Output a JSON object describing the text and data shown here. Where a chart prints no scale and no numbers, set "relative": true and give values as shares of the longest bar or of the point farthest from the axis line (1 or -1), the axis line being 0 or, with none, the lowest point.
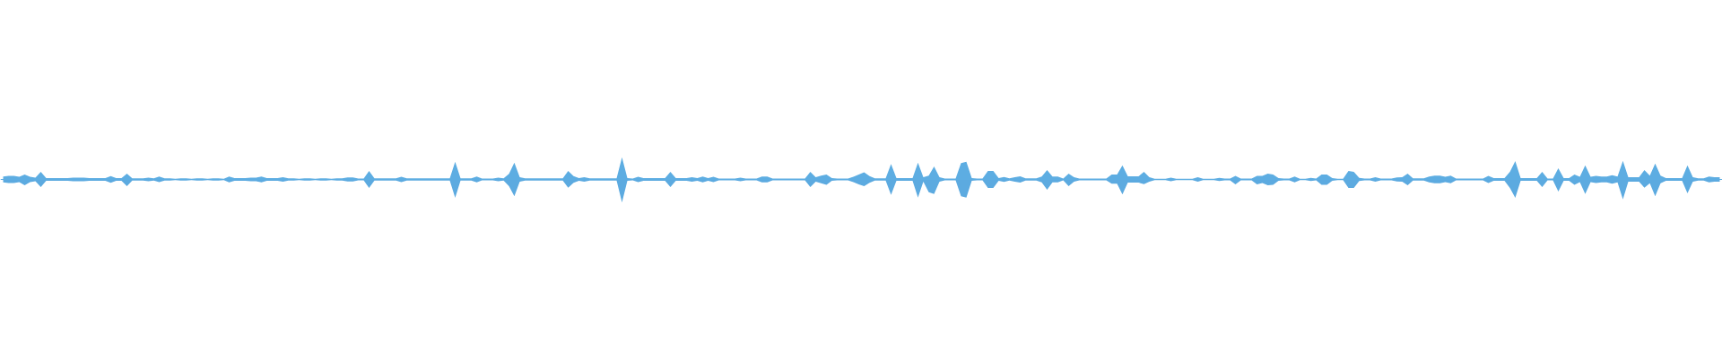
{
  "chart_data": {
    "type": "area",
    "relative": true,
    "categories": [
      null,
      null,
      null,
      null,
      null,
      null,
      null,
      null,
      null,
      null,
      null,
      null,
      null,
      null,
      null,
      null,
      null,
      null,
      null,
      null,
      null,
      null,
      null,
      null,
      null,
      null,
      null,
      null,
      null,
      null,
      null,
      null,
      null,
      null,
      null,
      null,
      null,
      null,
      null,
      null,
      null,
      null,
      null,
      null,
      null,
      null,
      null,
      null,
      null,
      null,
      null,
      null,
      null,
      null,
      null,
      null,
      null,
      null,
      null,
      null,
      null,
      null,
      null,
      null,
      null,
      null,
      null,
      null,
      null,
      null,
      null,
      null,
      null,
      null,
      null,
      null,
      null,
      null,
      null,
      null,
      null,
      null,
      null,
      null,
      null,
      null,
      null,
      null,
      null,
      null,
      null,
      null,
      null,
      null,
      null,
      null,
      null,
      null,
      null,
      null,
      null,
      null,
      null,
      null,
      null,
      null,
      null,
      null,
      null,
      null,
      null,
      null,
      null,
      null,
      null,
      null,
      null,
      null,
      null,
      null,
      null,
      null,
      null,
      null,
      null,
      null,
      null,
      null,
      null,
      null,
      null,
      null,
      null,
      null,
      null,
      null,
      null,
      null,
      null,
      null,
      null,
      null,
      null,
      null,
      null,
      null,
      null,
      null,
      null,
      null,
      null,
      null,
      null,
      null,
      null,
      null,
      null,
      null,
      null,
      null,
      null,
      null,
      null,
      null,
      null,
      null,
      null,
      null,
      null,
      null,
      null,
      null,
      null,
      null,
      null,
      null,
      null,
      null,
      null,
      null,
      null,
      null,
      null,
      null,
      null,
      null,
      null,
      null,
      null,
      null,
      null,
      null,
      null,
      null,
      null,
      null,
      null,
      null,
      null,
      null,
      null,
      null,
      null,
      null,
      null,
      null,
      null,
      null,
      null,
      null,
      null,
      null,
      null,
      null,
      null,
      null,
      null,
      null,
      null,
      null,
      null,
      null,
      null,
      null,
      null,
      null,
      null,
      null,
      null,
      null,
      null,
      null,
      null,
      null,
      null,
      null,
      null,
      null,
      null,
      null,
      null,
      null,
      null,
      null,
      null,
      null,
      null,
      null,
      null,
      null,
      null,
      null,
      null,
      null,
      null,
      null,
      null,
      null,
      null,
      null,
      null,
      null,
      null,
      null,
      null,
      null,
      null,
      null,
      null,
      null,
      null,
      null,
      null,
      null,
      null,
      null,
      null,
      null,
      null,
      null,
      null,
      null,
      null,
      null,
      null,
      null,
      null,
      null,
      null,
      null,
      null,
      null,
      null,
      null,
      null,
      null,
      null,
      null,
      null,
      null,
      null,
      null,
      null,
      null,
      null,
      null,
      null,
      null,
      null,
      null,
      null,
      null,
      null,
      null,
      null,
      null,
      null,
      null,
      null,
      null
    ],
    "series": [
      {
        "color": "#5dade2",
        "values": [
          0.13,
          0.16,
          0.16,
          0.12,
          0.21,
          0.12,
          0.08,
          0.33,
          0.06,
          0.06,
          0.06,
          0.06,
          0.06,
          0.08,
          0.08,
          0.08,
          0.06,
          0.06,
          0.06,
          0.06,
          0.15,
          0.06,
          0.06,
          0.25,
          0.05,
          0.05,
          0.05,
          0.08,
          0.05,
          0.13,
          0.05,
          0.05,
          0.03,
          0.05,
          0.05,
          0.03,
          0.05,
          0.05,
          0.03,
          0.05,
          0.05,
          0.03,
          0.13,
          0.06,
          0.06,
          0.06,
          0.08,
          0.08,
          0.13,
          0.06,
          0.06,
          0.06,
          0.1,
          0.05,
          0.05,
          0.03,
          0.05,
          0.05,
          0.03,
          0.05,
          0.05,
          0.03,
          0.05,
          0.05,
          0.09,
          0.09,
          0.04,
          0.04,
          0.37,
          0.05,
          0.05,
          0.05,
          0.05,
          0.05,
          0.12,
          0.05,
          0.05,
          0.05,
          0.05,
          0.05,
          0.05,
          0.05,
          0.05,
          0.05,
          0.77,
          0.05,
          0.05,
          0.05,
          0.13,
          0.04,
          0.04,
          0.04,
          0.08,
          0.05,
          0.24,
          0.73,
          0.1,
          0.05,
          0.05,
          0.05,
          0.05,
          0.05,
          0.05,
          0.05,
          0.05,
          0.37,
          0.15,
          0.06,
          0.1,
          0.05,
          0.05,
          0.05,
          0.05,
          0.05,
          0.05,
          0.97,
          0.06,
          0.04,
          0.12,
          0.06,
          0.06,
          0.06,
          0.06,
          0.06,
          0.33,
          0.06,
          0.06,
          0.06,
          0.1,
          0.06,
          0.13,
          0.06,
          0.12,
          0.04,
          0.04,
          0.04,
          0.04,
          0.08,
          0.04,
          0.04,
          0.04,
          0.13,
          0.13,
          0.04,
          0.04,
          0.04,
          0.04,
          0.04,
          0.04,
          0.04,
          0.33,
          0.1,
          0.17,
          0.21,
          0.06,
          0.04,
          0.04,
          0.04,
          0.12,
          0.21,
          0.31,
          0.15,
          0.05,
          0.05,
          0.05,
          0.67,
          0.06,
          0.06,
          0.06,
          0.06,
          0.73,
          0.1,
          0.17,
          0.57,
          0.1,
          0.04,
          0.04,
          0.04,
          0.71,
          0.77,
          0.06,
          0.04,
          0.04,
          0.37,
          0.37,
          0.06,
          0.11,
          0.05,
          0.1,
          0.14,
          0.05,
          0.05,
          0.05,
          0.13,
          0.41,
          0.13,
          0.13,
          0.04,
          0.25,
          0.1,
          0.04,
          0.04,
          0.04,
          0.04,
          0.04,
          0.04,
          0.21,
          0.21,
          0.61,
          0.14,
          0.14,
          0.14,
          0.33,
          0.1,
          0.03,
          0.03,
          0.03,
          0.08,
          0.03,
          0.03,
          0.03,
          0.03,
          0.1,
          0.03,
          0.03,
          0.03,
          0.07,
          0.04,
          0.04,
          0.16,
          0.04,
          0.04,
          0.04,
          0.16,
          0.16,
          0.25,
          0.21,
          0.06,
          0.04,
          0.04,
          0.13,
          0.03,
          0.03,
          0.07,
          0.04,
          0.21,
          0.21,
          0.06,
          0.03,
          0.03,
          0.37,
          0.33,
          0.07,
          0.04,
          0.04,
          0.1,
          0.04,
          0.04,
          0.04,
          0.09,
          0.1,
          0.25,
          0.05,
          0.05,
          0.05,
          0.13,
          0.17,
          0.17,
          0.12,
          0.17,
          0.04,
          0.04,
          0.04,
          0.04,
          0.04,
          0.04,
          0.16,
          0.06,
          0.06,
          0.06,
          0.33,
          0.8,
          0.06,
          0.06,
          0.06,
          0.06,
          0.33,
          0.04,
          0.04,
          0.49,
          0.06,
          0.06,
          0.21,
          0.12,
          0.61,
          0.12,
          0.16,
          0.13,
          0.13,
          0.19,
          0.13,
          0.81,
          0.1,
          0.1,
          0.1,
          0.41,
          0.17,
          0.69,
          0.17,
          0.06,
          0.06,
          0.06,
          0.06,
          0.61,
          0.1,
          0.05,
          0.05,
          0.13,
          0.1,
          0.1
        ]
      },
      {
        "color": "#5caae0",
        "values": [
          -0.13,
          -0.16,
          -0.16,
          -0.12,
          -0.25,
          -0.12,
          -0.08,
          -0.33,
          -0.06,
          -0.06,
          -0.06,
          -0.06,
          -0.06,
          -0.08,
          -0.08,
          -0.08,
          -0.06,
          -0.06,
          -0.06,
          -0.06,
          -0.15,
          -0.06,
          -0.06,
          -0.29,
          -0.05,
          -0.05,
          -0.05,
          -0.08,
          -0.05,
          -0.12,
          -0.05,
          -0.05,
          -0.03,
          -0.05,
          -0.05,
          -0.03,
          -0.05,
          -0.05,
          -0.03,
          -0.05,
          -0.05,
          -0.03,
          -0.13,
          -0.06,
          -0.06,
          -0.06,
          -0.08,
          -0.08,
          -0.13,
          -0.06,
          -0.06,
          -0.06,
          -0.1,
          -0.05,
          -0.05,
          -0.03,
          -0.05,
          -0.05,
          -0.03,
          -0.05,
          -0.05,
          -0.03,
          -0.05,
          -0.05,
          -0.09,
          -0.09,
          -0.04,
          -0.04,
          -0.37,
          -0.05,
          -0.05,
          -0.05,
          -0.05,
          -0.05,
          -0.12,
          -0.05,
          -0.05,
          -0.05,
          -0.05,
          -0.05,
          -0.05,
          -0.05,
          -0.05,
          -0.05,
          -0.8,
          -0.05,
          -0.05,
          -0.05,
          -0.13,
          -0.04,
          -0.04,
          -0.04,
          -0.08,
          -0.05,
          -0.29,
          -0.73,
          -0.1,
          -0.05,
          -0.05,
          -0.05,
          -0.05,
          -0.05,
          -0.05,
          -0.05,
          -0.05,
          -0.36,
          -0.15,
          -0.06,
          -0.1,
          -0.05,
          -0.05,
          -0.05,
          -0.05,
          -0.05,
          -0.05,
          -1.0,
          -0.06,
          -0.04,
          -0.12,
          -0.06,
          -0.06,
          -0.06,
          -0.06,
          -0.06,
          -0.33,
          -0.06,
          -0.06,
          -0.06,
          -0.1,
          -0.06,
          -0.13,
          -0.06,
          -0.12,
          -0.04,
          -0.04,
          -0.04,
          -0.04,
          -0.08,
          -0.04,
          -0.04,
          -0.04,
          -0.13,
          -0.13,
          -0.04,
          -0.04,
          -0.04,
          -0.04,
          -0.04,
          -0.04,
          -0.04,
          -0.33,
          -0.1,
          -0.17,
          -0.23,
          -0.06,
          -0.04,
          -0.04,
          -0.04,
          -0.12,
          -0.21,
          -0.29,
          -0.15,
          -0.05,
          -0.05,
          -0.05,
          -0.67,
          -0.06,
          -0.06,
          -0.06,
          -0.06,
          -0.79,
          -0.1,
          -0.56,
          -0.63,
          -0.1,
          -0.04,
          -0.04,
          -0.04,
          -0.73,
          -0.79,
          -0.06,
          -0.04,
          -0.04,
          -0.37,
          -0.37,
          -0.06,
          -0.11,
          -0.05,
          -0.1,
          -0.14,
          -0.05,
          -0.05,
          -0.05,
          -0.13,
          -0.45,
          -0.13,
          -0.13,
          -0.04,
          -0.29,
          -0.1,
          -0.04,
          -0.04,
          -0.04,
          -0.04,
          -0.04,
          -0.04,
          -0.19,
          -0.19,
          -0.65,
          -0.14,
          -0.14,
          -0.14,
          -0.2,
          -0.1,
          -0.03,
          -0.03,
          -0.03,
          -0.08,
          -0.03,
          -0.03,
          -0.03,
          -0.03,
          -0.1,
          -0.03,
          -0.03,
          -0.03,
          -0.07,
          -0.04,
          -0.04,
          -0.21,
          -0.04,
          -0.04,
          -0.04,
          -0.21,
          -0.16,
          -0.25,
          -0.23,
          -0.06,
          -0.04,
          -0.04,
          -0.13,
          -0.03,
          -0.03,
          -0.07,
          -0.04,
          -0.23,
          -0.23,
          -0.06,
          -0.03,
          -0.03,
          -0.37,
          -0.37,
          -0.07,
          -0.04,
          -0.04,
          -0.1,
          -0.04,
          -0.04,
          -0.04,
          -0.09,
          -0.1,
          -0.25,
          -0.05,
          -0.05,
          -0.05,
          -0.13,
          -0.17,
          -0.17,
          -0.12,
          -0.17,
          -0.04,
          -0.04,
          -0.04,
          -0.04,
          -0.04,
          -0.04,
          -0.16,
          -0.06,
          -0.06,
          -0.06,
          -0.37,
          -0.8,
          -0.06,
          -0.06,
          -0.06,
          -0.06,
          -0.33,
          -0.04,
          -0.04,
          -0.53,
          -0.06,
          -0.06,
          -0.23,
          -0.12,
          -0.63,
          -0.12,
          -0.16,
          -0.13,
          -0.13,
          -0.19,
          -0.13,
          -0.87,
          -0.1,
          -0.1,
          -0.1,
          -0.36,
          -0.17,
          -0.73,
          -0.17,
          -0.06,
          -0.06,
          -0.06,
          -0.06,
          -0.6,
          -0.1,
          -0.05,
          -0.05,
          -0.13,
          -0.1,
          -0.1
        ]
      }
    ]
  }
}
